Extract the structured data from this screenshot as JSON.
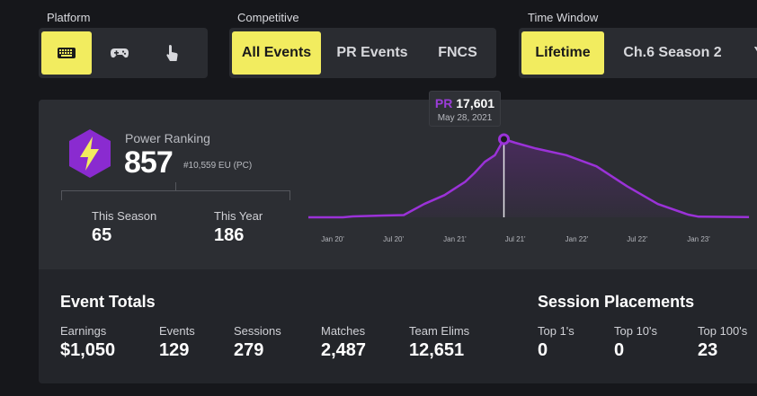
{
  "filters": {
    "platform": {
      "label": "Platform",
      "options": [
        {
          "icon": "keyboard-icon",
          "active": true
        },
        {
          "icon": "gamepad-icon",
          "active": false
        },
        {
          "icon": "touch-icon",
          "active": false
        }
      ]
    },
    "competitive": {
      "label": "Competitive",
      "options": [
        "All Events",
        "PR Events",
        "FNCS"
      ],
      "active": "All Events"
    },
    "time_window": {
      "label": "Time Window",
      "options": [
        "Lifetime",
        "Ch.6 Season 2",
        "Y"
      ],
      "active": "Lifetime"
    }
  },
  "power_ranking": {
    "label": "Power Ranking",
    "value": "857",
    "region_rank": "#10,559 EU (PC)",
    "badge_icon": "lightning-hexagon-icon"
  },
  "season_stats": [
    {
      "label": "This Season",
      "value": "65"
    },
    {
      "label": "This Year",
      "value": "186"
    }
  ],
  "chart_data": {
    "type": "area",
    "title": "",
    "x_ticks": [
      "Jan 20'",
      "Jul 20'",
      "Jan 21'",
      "Jul 21'",
      "Jan 22'",
      "Jul 22'",
      "Jan 23'"
    ],
    "series": [
      {
        "values": [
          [
            "2019-10",
            0
          ],
          [
            "2020-02",
            0
          ],
          [
            "2020-03",
            200
          ],
          [
            "2020-06",
            400
          ],
          [
            "2020-08",
            500
          ],
          [
            "2020-10",
            3000
          ],
          [
            "2020-12",
            5000
          ],
          [
            "2021-02",
            8000
          ],
          [
            "2021-03",
            10000
          ],
          [
            "2021-04",
            12500
          ],
          [
            "2021-05",
            14000
          ],
          [
            "2021-05-28",
            17601
          ],
          [
            "2021-07",
            16800
          ],
          [
            "2021-09",
            15500
          ],
          [
            "2021-12",
            14000
          ],
          [
            "2022-03",
            11500
          ],
          [
            "2022-06",
            7000
          ],
          [
            "2022-09",
            3000
          ],
          [
            "2022-12",
            600
          ],
          [
            "2023-01",
            150
          ],
          [
            "2023-06",
            50
          ]
        ]
      }
    ],
    "highlight": {
      "key": "PR",
      "value": "17,601",
      "date": "May 28, 2021"
    },
    "line_color": "#9b32d8",
    "fill_color": "#4a2b5e"
  },
  "event_totals": {
    "title": "Event Totals",
    "stats": [
      {
        "label": "Earnings",
        "value": "$1,050"
      },
      {
        "label": "Events",
        "value": "129"
      },
      {
        "label": "Sessions",
        "value": "279"
      },
      {
        "label": "Matches",
        "value": "2,487"
      },
      {
        "label": "Team Elims",
        "value": "12,651"
      }
    ]
  },
  "session_placements": {
    "title": "Session Placements",
    "stats": [
      {
        "label": "Top 1's",
        "value": "0"
      },
      {
        "label": "Top 10's",
        "value": "0"
      },
      {
        "label": "Top 100's",
        "value": "23"
      }
    ]
  },
  "colors": {
    "accent": "#f2ec5f",
    "purple": "#9b32d8",
    "background": "#16171b",
    "panel": "#2c2e33"
  }
}
